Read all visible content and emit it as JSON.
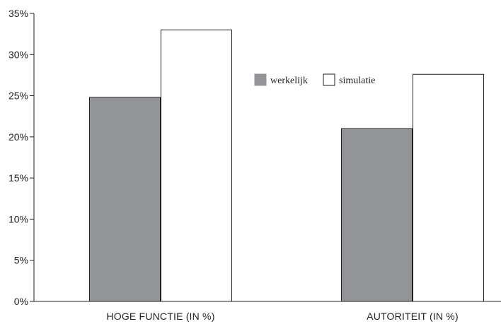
{
  "chart_data": {
    "type": "bar",
    "categories": [
      "HOGE FUNCTIE (IN %)",
      "AUTORITEIT (IN %)"
    ],
    "series": [
      {
        "name": "werkelijk",
        "values": [
          24.8,
          21.0
        ],
        "color": "#929497"
      },
      {
        "name": "simulatie",
        "values": [
          33.0,
          27.6
        ],
        "color": "#ffffff"
      }
    ],
    "y_ticks": [
      0,
      5,
      10,
      15,
      20,
      25,
      30,
      35
    ],
    "y_tick_labels": [
      "0%",
      "5%",
      "10%",
      "15%",
      "20%",
      "25%",
      "30%",
      "35%"
    ],
    "ylim": [
      0,
      35
    ],
    "grid": false,
    "legend_position": "center-right",
    "bar_outline_color": "#231f20",
    "axis_color": "#231f20"
  }
}
